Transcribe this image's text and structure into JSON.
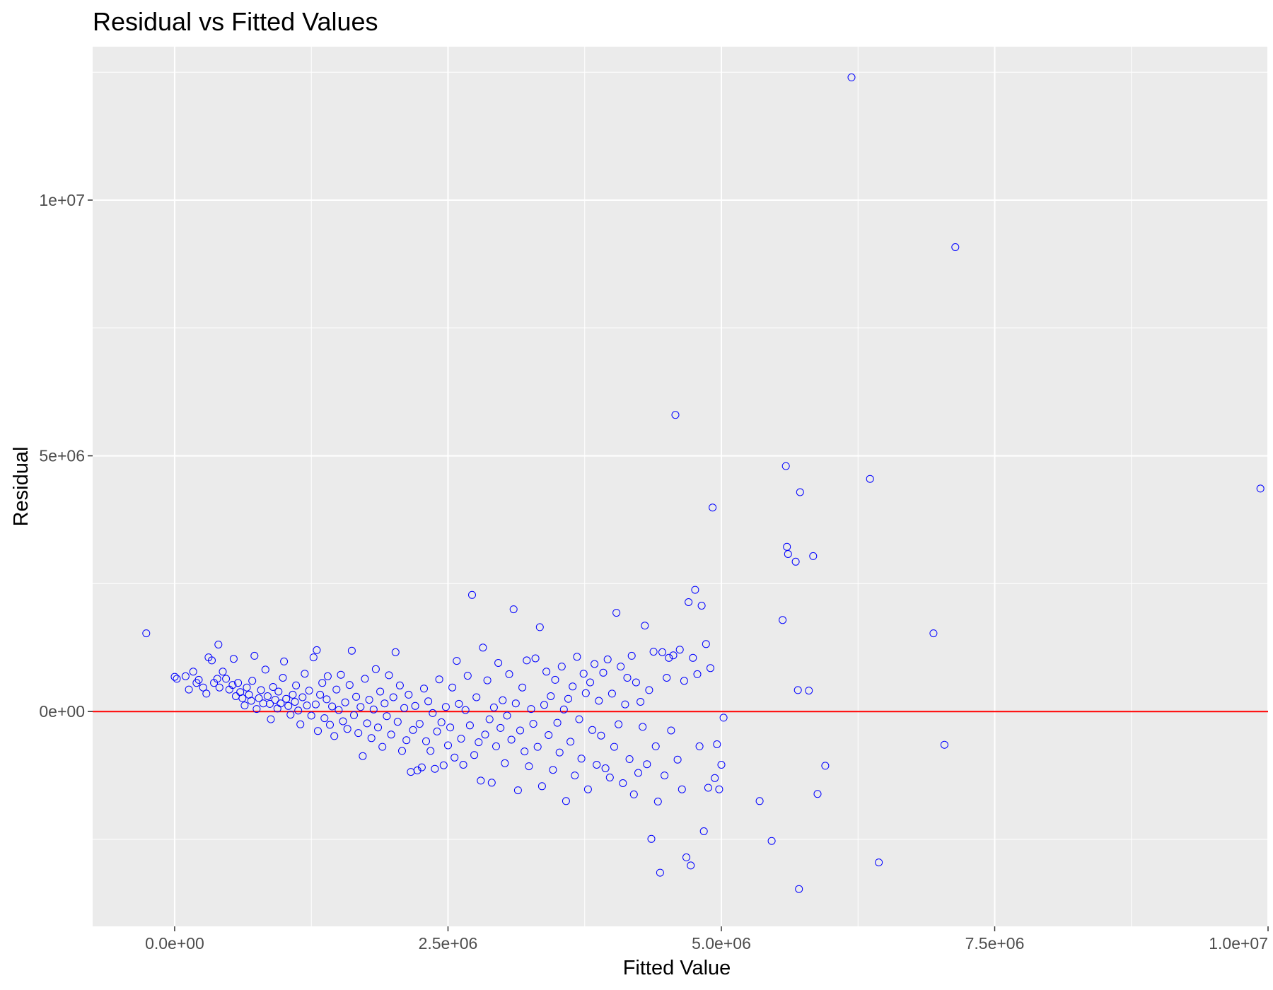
{
  "chart_data": {
    "type": "scatter",
    "title": "Residual vs Fitted Values",
    "xlabel": "Fitted Value",
    "ylabel": "Residual",
    "xlim": [
      -750000,
      10000000
    ],
    "ylim": [
      -4200000,
      13000000
    ],
    "x_ticks": [
      0,
      2500000,
      5000000,
      7500000,
      10000000
    ],
    "x_tick_labels": [
      "0.0e+00",
      "2.5e+06",
      "5.0e+06",
      "7.5e+06",
      "1.0e+07"
    ],
    "y_ticks": [
      0,
      5000000,
      10000000
    ],
    "y_tick_labels": [
      "0e+00",
      "5e+06",
      "1e+07"
    ],
    "grid": true,
    "background": "#ebebeb",
    "reference_line": {
      "y": 0,
      "color": "#ff0000"
    },
    "point_style": {
      "shape": "open-circle",
      "color": "#0000ff"
    },
    "points": [
      [
        -260000,
        1530000
      ],
      [
        0,
        680000
      ],
      [
        20000,
        640000
      ],
      [
        100000,
        690000
      ],
      [
        130000,
        430000
      ],
      [
        170000,
        780000
      ],
      [
        200000,
        560000
      ],
      [
        220000,
        620000
      ],
      [
        260000,
        470000
      ],
      [
        290000,
        350000
      ],
      [
        310000,
        1060000
      ],
      [
        340000,
        1000000
      ],
      [
        360000,
        560000
      ],
      [
        390000,
        640000
      ],
      [
        410000,
        470000
      ],
      [
        400000,
        1310000
      ],
      [
        440000,
        780000
      ],
      [
        470000,
        640000
      ],
      [
        500000,
        430000
      ],
      [
        530000,
        520000
      ],
      [
        540000,
        1030000
      ],
      [
        560000,
        300000
      ],
      [
        580000,
        560000
      ],
      [
        600000,
        380000
      ],
      [
        620000,
        260000
      ],
      [
        640000,
        120000
      ],
      [
        660000,
        470000
      ],
      [
        680000,
        330000
      ],
      [
        700000,
        210000
      ],
      [
        710000,
        600000
      ],
      [
        730000,
        1090000
      ],
      [
        750000,
        50000
      ],
      [
        770000,
        260000
      ],
      [
        790000,
        420000
      ],
      [
        810000,
        160000
      ],
      [
        830000,
        820000
      ],
      [
        850000,
        300000
      ],
      [
        870000,
        150000
      ],
      [
        880000,
        -150000
      ],
      [
        900000,
        480000
      ],
      [
        920000,
        230000
      ],
      [
        940000,
        60000
      ],
      [
        950000,
        390000
      ],
      [
        970000,
        160000
      ],
      [
        990000,
        660000
      ],
      [
        1000000,
        980000
      ],
      [
        1020000,
        250000
      ],
      [
        1040000,
        110000
      ],
      [
        1060000,
        -60000
      ],
      [
        1080000,
        330000
      ],
      [
        1100000,
        190000
      ],
      [
        1110000,
        510000
      ],
      [
        1130000,
        20000
      ],
      [
        1150000,
        -250000
      ],
      [
        1170000,
        280000
      ],
      [
        1190000,
        740000
      ],
      [
        1210000,
        120000
      ],
      [
        1230000,
        410000
      ],
      [
        1250000,
        -80000
      ],
      [
        1270000,
        1060000
      ],
      [
        1290000,
        140000
      ],
      [
        1300000,
        1200000
      ],
      [
        1310000,
        -380000
      ],
      [
        1330000,
        330000
      ],
      [
        1350000,
        560000
      ],
      [
        1370000,
        -130000
      ],
      [
        1390000,
        240000
      ],
      [
        1400000,
        690000
      ],
      [
        1420000,
        -260000
      ],
      [
        1440000,
        100000
      ],
      [
        1460000,
        -480000
      ],
      [
        1480000,
        430000
      ],
      [
        1500000,
        30000
      ],
      [
        1520000,
        720000
      ],
      [
        1540000,
        -190000
      ],
      [
        1560000,
        180000
      ],
      [
        1580000,
        -340000
      ],
      [
        1600000,
        520000
      ],
      [
        1620000,
        1190000
      ],
      [
        1640000,
        -70000
      ],
      [
        1660000,
        290000
      ],
      [
        1680000,
        -420000
      ],
      [
        1700000,
        90000
      ],
      [
        1720000,
        -870000
      ],
      [
        1740000,
        640000
      ],
      [
        1760000,
        -230000
      ],
      [
        1780000,
        230000
      ],
      [
        1800000,
        -520000
      ],
      [
        1820000,
        40000
      ],
      [
        1840000,
        830000
      ],
      [
        1860000,
        -310000
      ],
      [
        1880000,
        390000
      ],
      [
        1900000,
        -690000
      ],
      [
        1920000,
        160000
      ],
      [
        1940000,
        -90000
      ],
      [
        1960000,
        710000
      ],
      [
        1980000,
        -450000
      ],
      [
        2000000,
        280000
      ],
      [
        2020000,
        1160000
      ],
      [
        2040000,
        -200000
      ],
      [
        2060000,
        510000
      ],
      [
        2080000,
        -770000
      ],
      [
        2100000,
        70000
      ],
      [
        2120000,
        -560000
      ],
      [
        2140000,
        330000
      ],
      [
        2160000,
        -1180000
      ],
      [
        2180000,
        -360000
      ],
      [
        2200000,
        110000
      ],
      [
        2220000,
        -1150000
      ],
      [
        2240000,
        -240000
      ],
      [
        2260000,
        -1090000
      ],
      [
        2280000,
        450000
      ],
      [
        2300000,
        -580000
      ],
      [
        2320000,
        200000
      ],
      [
        2340000,
        -770000
      ],
      [
        2360000,
        -30000
      ],
      [
        2380000,
        -1120000
      ],
      [
        2400000,
        -390000
      ],
      [
        2420000,
        630000
      ],
      [
        2440000,
        -210000
      ],
      [
        2460000,
        -1050000
      ],
      [
        2480000,
        90000
      ],
      [
        2500000,
        -660000
      ],
      [
        2520000,
        -310000
      ],
      [
        2540000,
        470000
      ],
      [
        2560000,
        -900000
      ],
      [
        2580000,
        990000
      ],
      [
        2600000,
        150000
      ],
      [
        2620000,
        -530000
      ],
      [
        2640000,
        -1040000
      ],
      [
        2660000,
        30000
      ],
      [
        2680000,
        700000
      ],
      [
        2700000,
        -270000
      ],
      [
        2720000,
        2280000
      ],
      [
        2740000,
        -850000
      ],
      [
        2760000,
        280000
      ],
      [
        2780000,
        -600000
      ],
      [
        2800000,
        -1350000
      ],
      [
        2820000,
        1250000
      ],
      [
        2840000,
        -450000
      ],
      [
        2860000,
        610000
      ],
      [
        2880000,
        -150000
      ],
      [
        2900000,
        -1390000
      ],
      [
        2920000,
        80000
      ],
      [
        2940000,
        -680000
      ],
      [
        2960000,
        950000
      ],
      [
        2980000,
        -320000
      ],
      [
        3000000,
        220000
      ],
      [
        3020000,
        -1010000
      ],
      [
        3040000,
        -80000
      ],
      [
        3060000,
        730000
      ],
      [
        3080000,
        -550000
      ],
      [
        3100000,
        2000000
      ],
      [
        3120000,
        160000
      ],
      [
        3140000,
        -1540000
      ],
      [
        3160000,
        -370000
      ],
      [
        3180000,
        470000
      ],
      [
        3200000,
        -780000
      ],
      [
        3220000,
        1000000
      ],
      [
        3240000,
        -1070000
      ],
      [
        3260000,
        50000
      ],
      [
        3280000,
        -240000
      ],
      [
        3300000,
        1040000
      ],
      [
        3320000,
        -690000
      ],
      [
        3340000,
        1650000
      ],
      [
        3360000,
        -1460000
      ],
      [
        3380000,
        130000
      ],
      [
        3400000,
        780000
      ],
      [
        3420000,
        -460000
      ],
      [
        3440000,
        300000
      ],
      [
        3460000,
        -1140000
      ],
      [
        3480000,
        620000
      ],
      [
        3500000,
        -220000
      ],
      [
        3520000,
        -800000
      ],
      [
        3540000,
        880000
      ],
      [
        3560000,
        40000
      ],
      [
        3580000,
        -1750000
      ],
      [
        3600000,
        250000
      ],
      [
        3620000,
        -590000
      ],
      [
        3640000,
        490000
      ],
      [
        3660000,
        -1250000
      ],
      [
        3680000,
        1070000
      ],
      [
        3700000,
        -150000
      ],
      [
        3720000,
        -920000
      ],
      [
        3740000,
        740000
      ],
      [
        3760000,
        360000
      ],
      [
        3780000,
        -1520000
      ],
      [
        3800000,
        570000
      ],
      [
        3820000,
        -360000
      ],
      [
        3840000,
        930000
      ],
      [
        3860000,
        -1040000
      ],
      [
        3880000,
        210000
      ],
      [
        3900000,
        -470000
      ],
      [
        3920000,
        760000
      ],
      [
        3940000,
        -1110000
      ],
      [
        3960000,
        1020000
      ],
      [
        3980000,
        -1290000
      ],
      [
        4000000,
        350000
      ],
      [
        4020000,
        -690000
      ],
      [
        4040000,
        1930000
      ],
      [
        4060000,
        -250000
      ],
      [
        4080000,
        880000
      ],
      [
        4100000,
        -1400000
      ],
      [
        4120000,
        140000
      ],
      [
        4140000,
        660000
      ],
      [
        4160000,
        -930000
      ],
      [
        4180000,
        1090000
      ],
      [
        4200000,
        -1620000
      ],
      [
        4220000,
        570000
      ],
      [
        4240000,
        -1200000
      ],
      [
        4260000,
        190000
      ],
      [
        4280000,
        -300000
      ],
      [
        4300000,
        1680000
      ],
      [
        4320000,
        -1030000
      ],
      [
        4340000,
        420000
      ],
      [
        4360000,
        -2490000
      ],
      [
        4380000,
        1170000
      ],
      [
        4400000,
        -680000
      ],
      [
        4420000,
        -1760000
      ],
      [
        4440000,
        -3150000
      ],
      [
        4460000,
        1160000
      ],
      [
        4480000,
        -1250000
      ],
      [
        4500000,
        660000
      ],
      [
        4520000,
        1050000
      ],
      [
        4540000,
        -370000
      ],
      [
        4560000,
        1100000
      ],
      [
        4580000,
        5800000
      ],
      [
        4600000,
        -940000
      ],
      [
        4620000,
        1210000
      ],
      [
        4640000,
        -1520000
      ],
      [
        4660000,
        600000
      ],
      [
        4680000,
        -2850000
      ],
      [
        4700000,
        2140000
      ],
      [
        4720000,
        -3010000
      ],
      [
        4740000,
        1050000
      ],
      [
        4760000,
        2380000
      ],
      [
        4780000,
        730000
      ],
      [
        4800000,
        -680000
      ],
      [
        4820000,
        2070000
      ],
      [
        4840000,
        -2340000
      ],
      [
        4860000,
        1320000
      ],
      [
        4880000,
        -1490000
      ],
      [
        4900000,
        850000
      ],
      [
        4920000,
        3990000
      ],
      [
        4940000,
        -1300000
      ],
      [
        4960000,
        -640000
      ],
      [
        4980000,
        -1520000
      ],
      [
        5000000,
        -1040000
      ],
      [
        5020000,
        -120000
      ],
      [
        5350000,
        -1750000
      ],
      [
        5460000,
        -2530000
      ],
      [
        5560000,
        1790000
      ],
      [
        5590000,
        4800000
      ],
      [
        5600000,
        3220000
      ],
      [
        5610000,
        3080000
      ],
      [
        5680000,
        2930000
      ],
      [
        5700000,
        420000
      ],
      [
        5710000,
        -3470000
      ],
      [
        5720000,
        4290000
      ],
      [
        5800000,
        410000
      ],
      [
        5840000,
        3040000
      ],
      [
        5880000,
        -1610000
      ],
      [
        5950000,
        -1060000
      ],
      [
        6190000,
        12400000
      ],
      [
        6360000,
        4550000
      ],
      [
        6440000,
        -2950000
      ],
      [
        6940000,
        1530000
      ],
      [
        7040000,
        -650000
      ],
      [
        7140000,
        9080000
      ],
      [
        9930000,
        4360000
      ]
    ]
  }
}
